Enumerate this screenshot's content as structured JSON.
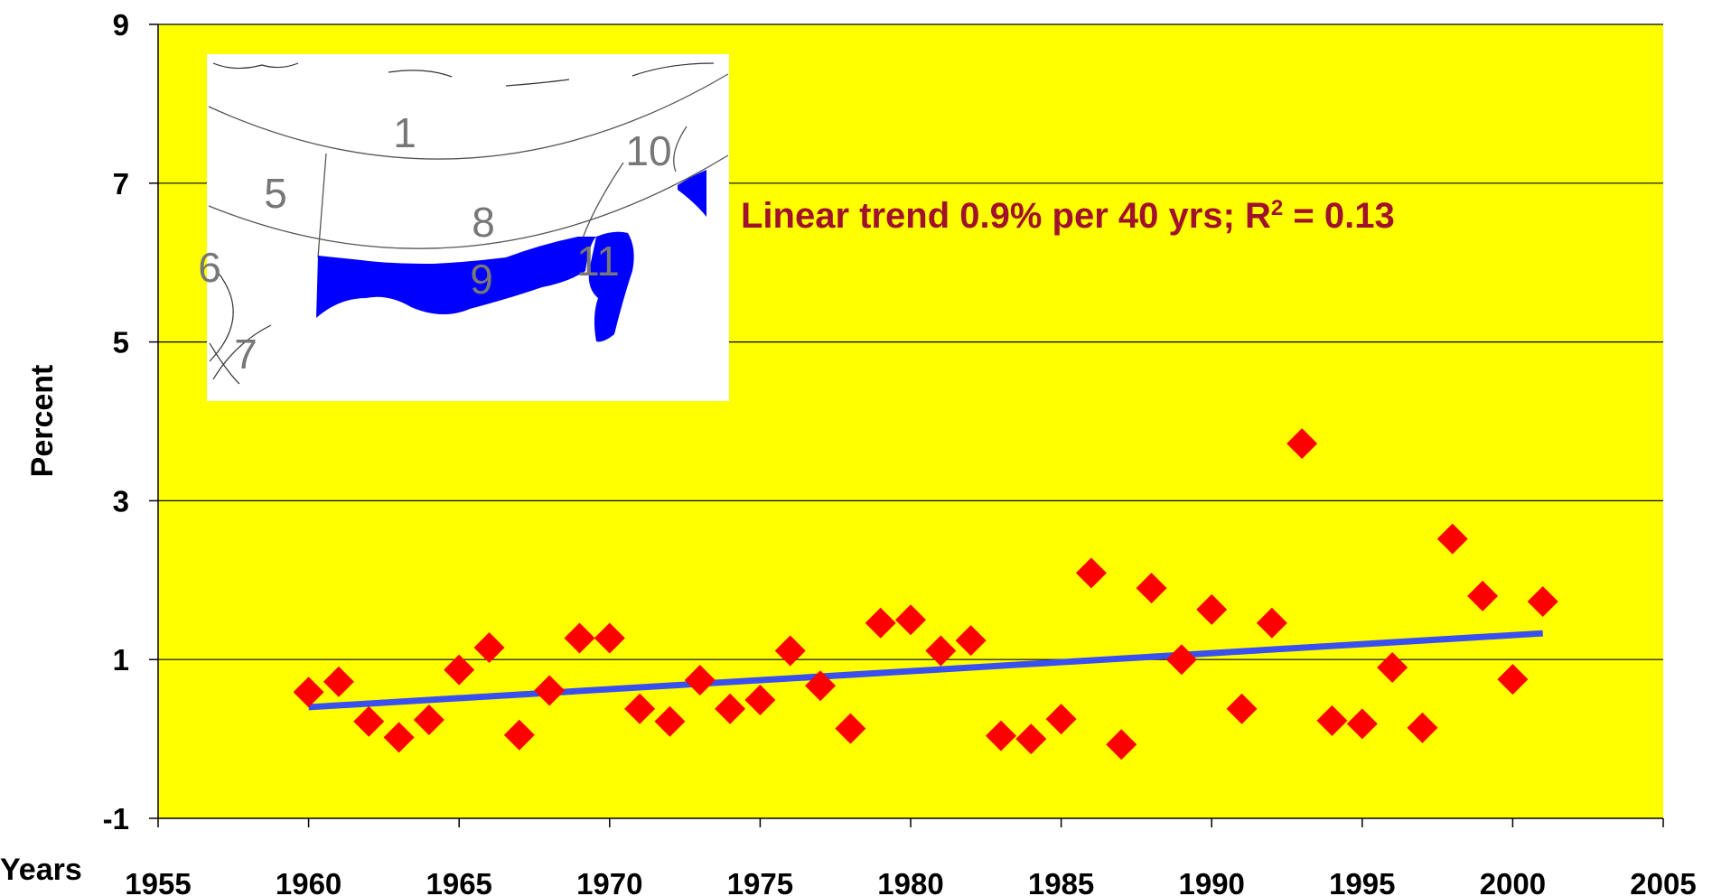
{
  "chart_data": {
    "type": "scatter",
    "title": "",
    "xlabel": "Years",
    "ylabel": "Percent",
    "xlim": [
      1955,
      2005
    ],
    "ylim": [
      -1,
      9
    ],
    "xticks": [
      1955,
      1960,
      1965,
      1970,
      1975,
      1980,
      1985,
      1990,
      1995,
      2000,
      2005
    ],
    "yticks": [
      -1,
      1,
      3,
      5,
      7,
      9
    ],
    "grid": true,
    "plot_background": "#ffff00",
    "annotation": {
      "text_main": "Linear trend 0.9% per 40 yrs; R",
      "superscript": "2",
      "text_tail": " = 0.13",
      "color": "#a0122b"
    },
    "series": [
      {
        "marker": "diamond",
        "color": "#ff0000",
        "x": [
          1960,
          1961,
          1962,
          1963,
          1964,
          1965,
          1966,
          1967,
          1968,
          1969,
          1970,
          1971,
          1972,
          1973,
          1974,
          1975,
          1976,
          1977,
          1978,
          1979,
          1980,
          1981,
          1982,
          1983,
          1984,
          1985,
          1986,
          1987,
          1988,
          1989,
          1990,
          1991,
          1992,
          1993,
          1994,
          1995,
          1996,
          1997,
          1998,
          1999,
          2000,
          2001
        ],
        "y": [
          0.59,
          0.72,
          0.22,
          0.02,
          0.24,
          0.87,
          1.15,
          0.05,
          0.61,
          1.27,
          1.27,
          0.38,
          0.22,
          0.74,
          0.38,
          0.49,
          1.11,
          0.67,
          0.13,
          1.46,
          1.5,
          1.11,
          1.24,
          0.04,
          0,
          0.25,
          2.09,
          -0.07,
          1.9,
          1,
          1.63,
          0.38,
          1.46,
          3.72,
          0.23,
          0.19,
          0.9,
          0.14,
          2.52,
          1.8,
          0.75,
          1.73
        ]
      }
    ],
    "trendline": {
      "type": "linear",
      "color": "#3a4ff0",
      "x": [
        1960,
        2001
      ],
      "y": [
        0.4,
        1.33
      ]
    },
    "inset_map": {
      "region_labels": [
        "1",
        "5",
        "6",
        "7",
        "8",
        "9",
        "10",
        "11"
      ],
      "highlight_color": "#0000ff"
    }
  }
}
